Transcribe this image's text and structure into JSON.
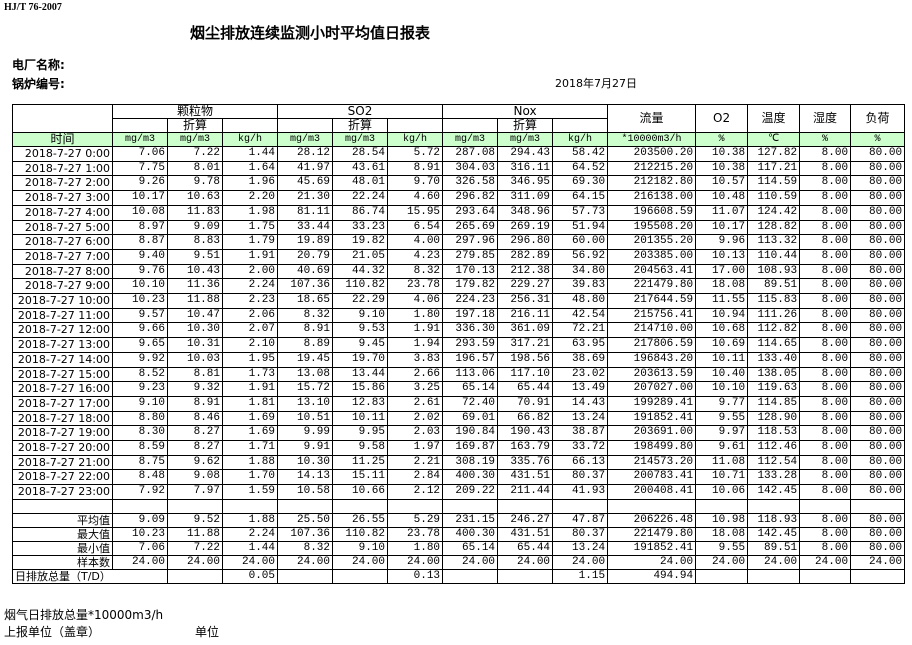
{
  "header": {
    "code": "HJ/T  76-2007",
    "title": "烟尘排放连续监测小时平均值日报表",
    "plant_label": "电厂名称:",
    "boiler_label": "锅炉编号:",
    "date": "2018年7月27日"
  },
  "table": {
    "groups": [
      "颗粒物",
      "SO2",
      "Nox"
    ],
    "converted": "折算",
    "time_header": "时间",
    "side_headers": [
      "流量",
      "O2",
      "温度",
      "湿度",
      "负荷"
    ],
    "units": [
      "mg/m3",
      "mg/m3",
      "kg/h",
      "mg/m3",
      "mg/m3",
      "kg/h",
      "mg/m3",
      "mg/m3",
      "kg/h",
      "*10000m3/h",
      "%",
      "℃",
      "%",
      "%"
    ],
    "rows": [
      [
        "2018-7-27 0:00",
        "7.06",
        "7.22",
        "1.44",
        "28.12",
        "28.54",
        "5.72",
        "287.08",
        "294.43",
        "58.42",
        "203500.20",
        "10.38",
        "127.82",
        "8.00",
        "80.00"
      ],
      [
        "2018-7-27 1:00",
        "7.75",
        "8.01",
        "1.64",
        "41.97",
        "43.61",
        "8.91",
        "304.03",
        "316.11",
        "64.52",
        "212215.20",
        "10.38",
        "117.21",
        "8.00",
        "80.00"
      ],
      [
        "2018-7-27 2:00",
        "9.26",
        "9.78",
        "1.96",
        "45.69",
        "48.01",
        "9.70",
        "326.58",
        "346.95",
        "69.30",
        "212182.80",
        "10.57",
        "114.59",
        "8.00",
        "80.00"
      ],
      [
        "2018-7-27 3:00",
        "10.17",
        "10.63",
        "2.20",
        "21.30",
        "22.24",
        "4.60",
        "296.82",
        "311.09",
        "64.15",
        "216138.00",
        "10.48",
        "110.59",
        "8.00",
        "80.00"
      ],
      [
        "2018-7-27 4:00",
        "10.08",
        "11.83",
        "1.98",
        "81.11",
        "86.74",
        "15.95",
        "293.64",
        "348.96",
        "57.73",
        "196608.59",
        "11.07",
        "124.42",
        "8.00",
        "80.00"
      ],
      [
        "2018-7-27 5:00",
        "8.97",
        "9.09",
        "1.75",
        "33.44",
        "33.23",
        "6.54",
        "265.69",
        "269.19",
        "51.94",
        "195508.20",
        "10.17",
        "128.82",
        "8.00",
        "80.00"
      ],
      [
        "2018-7-27 6:00",
        "8.87",
        "8.83",
        "1.79",
        "19.89",
        "19.82",
        "4.00",
        "297.96",
        "296.80",
        "60.00",
        "201355.20",
        "9.96",
        "113.32",
        "8.00",
        "80.00"
      ],
      [
        "2018-7-27 7:00",
        "9.40",
        "9.51",
        "1.91",
        "20.79",
        "21.05",
        "4.23",
        "279.85",
        "282.89",
        "56.92",
        "203385.00",
        "10.13",
        "110.44",
        "8.00",
        "80.00"
      ],
      [
        "2018-7-27 8:00",
        "9.76",
        "10.43",
        "2.00",
        "40.69",
        "44.32",
        "8.32",
        "170.13",
        "212.38",
        "34.80",
        "204563.41",
        "17.00",
        "108.93",
        "8.00",
        "80.00"
      ],
      [
        "2018-7-27 9:00",
        "10.10",
        "11.36",
        "2.24",
        "107.36",
        "110.82",
        "23.78",
        "179.82",
        "229.27",
        "39.83",
        "221479.80",
        "18.08",
        "89.51",
        "8.00",
        "80.00"
      ],
      [
        "2018-7-27 10:00",
        "10.23",
        "11.88",
        "2.23",
        "18.65",
        "22.29",
        "4.06",
        "224.23",
        "256.31",
        "48.80",
        "217644.59",
        "11.55",
        "115.83",
        "8.00",
        "80.00"
      ],
      [
        "2018-7-27 11:00",
        "9.57",
        "10.47",
        "2.06",
        "8.32",
        "9.10",
        "1.80",
        "197.18",
        "216.11",
        "42.54",
        "215756.41",
        "10.94",
        "111.26",
        "8.00",
        "80.00"
      ],
      [
        "2018-7-27 12:00",
        "9.66",
        "10.30",
        "2.07",
        "8.91",
        "9.53",
        "1.91",
        "336.30",
        "361.09",
        "72.21",
        "214710.00",
        "10.68",
        "112.82",
        "8.00",
        "80.00"
      ],
      [
        "2018-7-27 13:00",
        "9.65",
        "10.31",
        "2.10",
        "8.89",
        "9.45",
        "1.94",
        "293.59",
        "317.21",
        "63.95",
        "217806.59",
        "10.69",
        "114.65",
        "8.00",
        "80.00"
      ],
      [
        "2018-7-27 14:00",
        "9.92",
        "10.03",
        "1.95",
        "19.45",
        "19.70",
        "3.83",
        "196.57",
        "198.56",
        "38.69",
        "196843.20",
        "10.11",
        "133.40",
        "8.00",
        "80.00"
      ],
      [
        "2018-7-27 15:00",
        "8.52",
        "8.81",
        "1.73",
        "13.08",
        "13.44",
        "2.66",
        "113.06",
        "117.10",
        "23.02",
        "203613.59",
        "10.40",
        "138.05",
        "8.00",
        "80.00"
      ],
      [
        "2018-7-27 16:00",
        "9.23",
        "9.32",
        "1.91",
        "15.72",
        "15.86",
        "3.25",
        "65.14",
        "65.44",
        "13.49",
        "207027.00",
        "10.10",
        "119.63",
        "8.00",
        "80.00"
      ],
      [
        "2018-7-27 17:00",
        "9.10",
        "8.91",
        "1.81",
        "13.10",
        "12.83",
        "2.61",
        "72.40",
        "70.91",
        "14.43",
        "199289.41",
        "9.77",
        "114.85",
        "8.00",
        "80.00"
      ],
      [
        "2018-7-27 18:00",
        "8.80",
        "8.46",
        "1.69",
        "10.51",
        "10.11",
        "2.02",
        "69.01",
        "66.82",
        "13.24",
        "191852.41",
        "9.55",
        "128.90",
        "8.00",
        "80.00"
      ],
      [
        "2018-7-27 19:00",
        "8.30",
        "8.27",
        "1.69",
        "9.99",
        "9.95",
        "2.03",
        "190.84",
        "190.43",
        "38.87",
        "203691.00",
        "9.97",
        "118.53",
        "8.00",
        "80.00"
      ],
      [
        "2018-7-27 20:00",
        "8.59",
        "8.27",
        "1.71",
        "9.91",
        "9.58",
        "1.97",
        "169.87",
        "163.79",
        "33.72",
        "198499.80",
        "9.61",
        "112.46",
        "8.00",
        "80.00"
      ],
      [
        "2018-7-27 21:00",
        "8.75",
        "9.62",
        "1.88",
        "10.30",
        "11.25",
        "2.21",
        "308.19",
        "335.76",
        "66.13",
        "214573.20",
        "11.08",
        "112.54",
        "8.00",
        "80.00"
      ],
      [
        "2018-7-27 22:00",
        "8.48",
        "9.08",
        "1.70",
        "14.13",
        "15.11",
        "2.84",
        "400.30",
        "431.51",
        "80.37",
        "200783.41",
        "10.71",
        "133.28",
        "8.00",
        "80.00"
      ],
      [
        "2018-7-27 23:00",
        "7.92",
        "7.97",
        "1.59",
        "10.58",
        "10.66",
        "2.12",
        "209.22",
        "211.44",
        "41.93",
        "200408.41",
        "10.06",
        "142.45",
        "8.00",
        "80.00"
      ]
    ],
    "summary": [
      [
        "平均值",
        "9.09",
        "9.52",
        "1.88",
        "25.50",
        "26.55",
        "5.29",
        "231.15",
        "246.27",
        "47.87",
        "206226.48",
        "10.98",
        "118.93",
        "8.00",
        "80.00"
      ],
      [
        "最大值",
        "10.23",
        "11.88",
        "2.24",
        "107.36",
        "110.82",
        "23.78",
        "400.30",
        "431.51",
        "80.37",
        "221479.80",
        "18.08",
        "142.45",
        "8.00",
        "80.00"
      ],
      [
        "最小值",
        "7.06",
        "7.22",
        "1.44",
        "8.32",
        "9.10",
        "1.80",
        "65.14",
        "65.44",
        "13.24",
        "191852.41",
        "9.55",
        "89.51",
        "8.00",
        "80.00"
      ],
      [
        "样本数",
        "24.00",
        "24.00",
        "24.00",
        "24.00",
        "24.00",
        "24.00",
        "24.00",
        "24.00",
        "24.00",
        "24.00",
        "24.00",
        "24.00",
        "24.00",
        "24.00"
      ]
    ],
    "daily_total": {
      "label": "日排放总量（T/D）",
      "particulate": "0.05",
      "so2": "0.13",
      "nox": "1.15",
      "flow": "494.94"
    }
  },
  "footer": {
    "flue_gas_total": "烟气日排放总量*10000m3/h",
    "reporting_unit": "上报单位（盖章）",
    "unit": "单位"
  }
}
